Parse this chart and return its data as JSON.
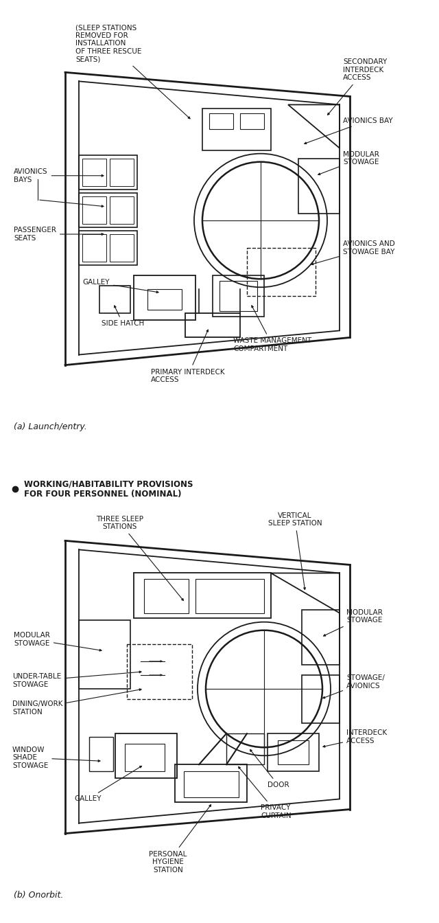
{
  "bg_color": "#f5f5f0",
  "line_color": "#1a1a1a",
  "title_a": "(a) Launch/entry.",
  "title_b": "(b) Onorbit.",
  "bullet_text": "WORKING/HABITABILITY PROVISIONS\nFOR FOUR PERSONNEL (NOMINAL)",
  "fig_width": 6.4,
  "fig_height": 13.44
}
